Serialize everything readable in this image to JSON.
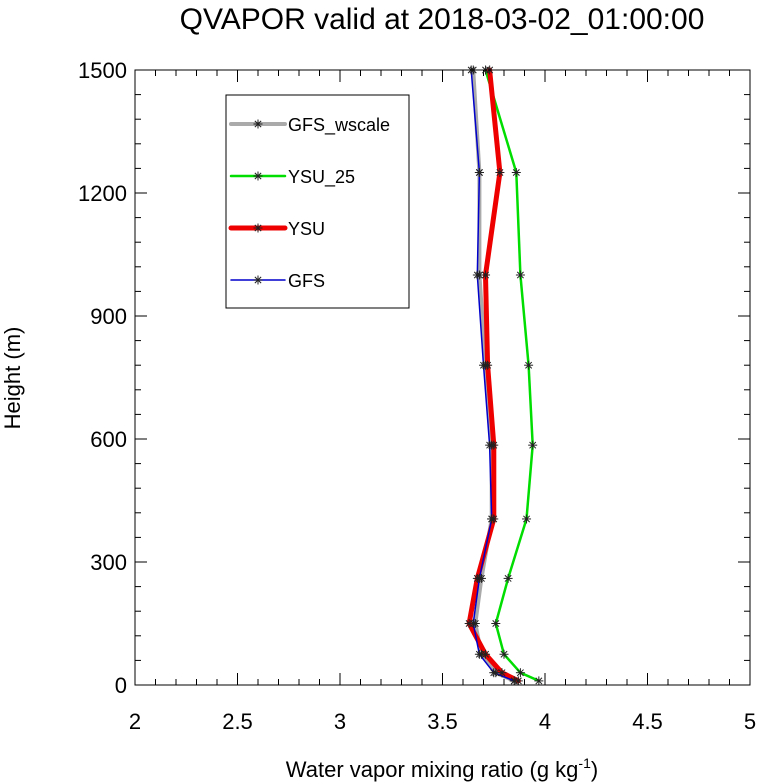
{
  "chart_data": {
    "type": "line",
    "title": "QVAPOR valid at 2018-03-02_01:00:00",
    "xlabel": "Water vapor mixing ratio (g kg",
    "xlabel_sup": "-1",
    "xlabel_end": ")",
    "ylabel": "Height (m)",
    "xlim": [
      2,
      5
    ],
    "ylim": [
      0,
      1500
    ],
    "x_ticks": [
      "2",
      "2.5",
      "3",
      "3.5",
      "4",
      "4.5",
      "5"
    ],
    "y_ticks": [
      "0",
      "300",
      "600",
      "900",
      "1200",
      "1500"
    ],
    "legend": {
      "placement": "upper-left"
    },
    "series": [
      {
        "name": "GFS_wscale",
        "color": "#aaaaaa",
        "heights": [
          10,
          30,
          75,
          150,
          260,
          405,
          585,
          780,
          1000,
          1250,
          1500
        ],
        "values": [
          3.85,
          3.76,
          3.69,
          3.66,
          3.69,
          3.74,
          3.74,
          3.71,
          3.68,
          3.68,
          3.65
        ]
      },
      {
        "name": "YSU_25",
        "color": "#00dd00",
        "heights": [
          10,
          30,
          75,
          150,
          260,
          405,
          585,
          780,
          1000,
          1250,
          1500
        ],
        "values": [
          3.97,
          3.88,
          3.8,
          3.76,
          3.82,
          3.91,
          3.94,
          3.92,
          3.88,
          3.86,
          3.71
        ]
      },
      {
        "name": "YSU",
        "color": "#ee0000",
        "heights": [
          10,
          30,
          75,
          150,
          260,
          405,
          585,
          780,
          1000,
          1250,
          1500
        ],
        "values": [
          3.87,
          3.79,
          3.71,
          3.63,
          3.67,
          3.75,
          3.75,
          3.72,
          3.71,
          3.78,
          3.73
        ]
      },
      {
        "name": "GFS",
        "color": "#0000cc",
        "heights": [
          10,
          30,
          75,
          150,
          260,
          405,
          585,
          780,
          1000,
          1250,
          1500
        ],
        "values": [
          3.85,
          3.75,
          3.68,
          3.65,
          3.68,
          3.74,
          3.73,
          3.7,
          3.67,
          3.68,
          3.64
        ]
      }
    ]
  }
}
